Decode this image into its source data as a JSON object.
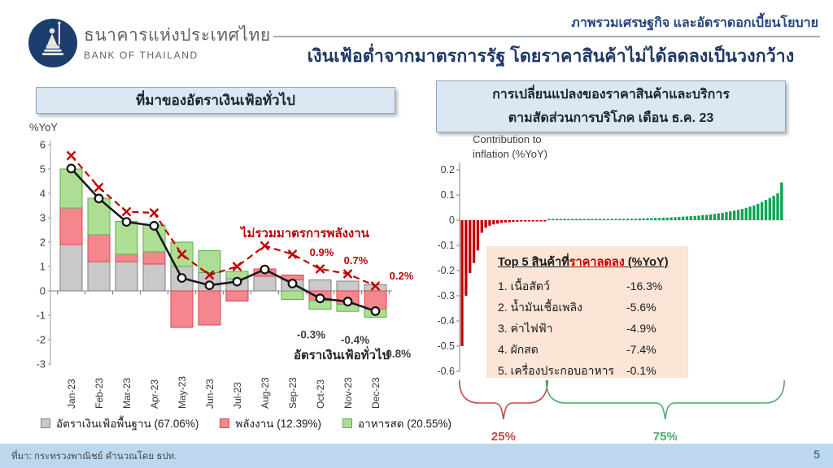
{
  "header": {
    "bank_name_th": "ธนาคารแห่งประเทศไทย",
    "bank_name_en": "BANK OF THAILAND",
    "section_title": "ภาพรวมเศรษฐกิจ และอัตราดอกเบี้ยนโยบาย",
    "slide_title": "เงินเฟ้อต่ำจากมาตรการรัฐ โดยราคาสินค้าไม่ได้ลดลงเป็นวงกว้าง"
  },
  "left_panel": {
    "banner": "ที่มาของอัตราเงินเฟ้อทั่วไป",
    "y_axis_label": "%YoY"
  },
  "right_panel": {
    "banner_line1": "การเปลี่ยนแปลงของราคาสินค้าและบริการ",
    "banner_line2": "ตามสัดส่วนการบริโภค เดือน ธ.ค. 23",
    "top5": {
      "heading_prefix": "Top 5 สินค้าที่",
      "heading_highlight": "ราคาลดลง",
      "heading_suffix": " (%YoY)",
      "items": [
        {
          "label": "1. เนื้อสัตว์",
          "value": "-16.3%"
        },
        {
          "label": "2. น้ำมันเชื้อเพลิง",
          "value": "-5.6%"
        },
        {
          "label": "3. ค่าไฟฟ้า",
          "value": "-4.9%"
        },
        {
          "label": "4. ผักสด",
          "value": "-7.4%"
        },
        {
          "label": "5. เครื่องประกอบอาหาร",
          "value": "-0.1%"
        }
      ]
    }
  },
  "footer": {
    "source": "ที่มา: กระทรวงพาณิชย์ คำนวณโดย ธปท.",
    "page_number": "5"
  },
  "colors": {
    "title_navy": "#1F3864",
    "banner_bg": "#DBE8F4",
    "footer_bg": "#BDD7EE",
    "logo_navy": "#1C3E6E",
    "top5_bg": "#FBE5D6"
  },
  "chart_data": [
    {
      "type": "bar",
      "subtype": "stacked-bars-with-lines",
      "title": "ที่มาของอัตราเงินเฟ้อทั่วไป",
      "ylabel": "%YoY",
      "ylim": [
        -3,
        6
      ],
      "yticks": [
        6,
        5,
        4,
        3,
        2,
        1,
        0,
        -1,
        -2,
        -3
      ],
      "grid": false,
      "legend_position": "bottom",
      "categories": [
        "Jan-23",
        "Feb-23",
        "Mar-23",
        "Apr-23",
        "May-23",
        "Jun-23",
        "Jul-23",
        "Aug-23",
        "Sep-23",
        "Oct-23",
        "Nov-23",
        "Dec-23"
      ],
      "series": [
        {
          "name": "อัตราเงินเฟ้อพื้นฐาน (67.06%)",
          "type": "bar",
          "fill": "#C9C9C9",
          "border": "#7F7F7F",
          "values": [
            1.9,
            1.2,
            1.2,
            1.1,
            1.0,
            0.75,
            0.5,
            0.6,
            0.45,
            0.45,
            0.4,
            0.25
          ]
        },
        {
          "name": "พลังงาน (12.39%)",
          "type": "bar",
          "fill": "#F4878E",
          "border": "#E0424D",
          "values": [
            1.5,
            1.1,
            0.3,
            0.5,
            -1.5,
            -1.4,
            -0.42,
            0.3,
            0.2,
            -0.4,
            -0.55,
            -0.75
          ]
        },
        {
          "name": "อาหารสด (20.55%)",
          "type": "bar",
          "fill": "#AEDD94",
          "border": "#56B14B",
          "values": [
            1.6,
            1.5,
            1.35,
            1.1,
            1.0,
            0.9,
            0.3,
            0,
            -0.35,
            -0.35,
            -0.29,
            -0.33
          ]
        },
        {
          "name": "อัตราเงินเฟ้อทั่วไป",
          "type": "line",
          "color": "#1A1A1A",
          "values": [
            5.02,
            3.79,
            2.83,
            2.67,
            0.53,
            0.23,
            0.38,
            0.88,
            0.3,
            -0.31,
            -0.44,
            -0.83
          ]
        },
        {
          "name": "ไม่รวมมาตรการพลังงาน",
          "type": "dashed-line",
          "color": "#C00000",
          "values": [
            5.55,
            4.25,
            3.25,
            3.2,
            1.5,
            0.65,
            1.0,
            1.85,
            1.5,
            0.9,
            0.7,
            0.2
          ]
        }
      ],
      "annotations": {
        "dashed_label": "ไม่รวมมาตรการพลังงาน",
        "dashed_point_labels": [
          {
            "index": 9,
            "text": "0.9%"
          },
          {
            "index": 10,
            "text": "0.7%"
          },
          {
            "index": 11,
            "text": "0.2%"
          }
        ],
        "line_point_labels": [
          {
            "index": 9,
            "text": "-0.3%"
          },
          {
            "index": 10,
            "text": "-0.4%"
          },
          {
            "index": 11,
            "text": "-0.8%"
          }
        ],
        "line_label": "อัตราเงินเฟ้อทั่วไป"
      }
    },
    {
      "type": "bar",
      "subtype": "sorted-contribution-bars",
      "title_line1": "Contribution to",
      "title_line2": "inflation (%YoY)",
      "ylim": [
        -0.6,
        0.2
      ],
      "yticks": [
        0.2,
        0.1,
        0,
        -0.1,
        -0.2,
        -0.3,
        -0.4,
        -0.5,
        -0.6
      ],
      "negative_color": "#C00000",
      "positive_color": "#00A551",
      "values": [
        -0.5,
        -0.3,
        -0.21,
        -0.17,
        -0.12,
        -0.05,
        -0.03,
        -0.022,
        -0.017,
        -0.014,
        -0.011,
        -0.009,
        -0.008,
        -0.007,
        -0.006,
        -0.005,
        -0.005,
        -0.004,
        -0.004,
        -0.003,
        -0.003,
        -0.002,
        0.002,
        0.002,
        0.002,
        0.002,
        0.002,
        0.002,
        0.002,
        0.003,
        0.003,
        0.003,
        0.003,
        0.003,
        0.003,
        0.004,
        0.004,
        0.004,
        0.004,
        0.005,
        0.005,
        0.005,
        0.006,
        0.006,
        0.006,
        0.007,
        0.007,
        0.008,
        0.008,
        0.009,
        0.009,
        0.01,
        0.01,
        0.011,
        0.012,
        0.013,
        0.014,
        0.015,
        0.016,
        0.017,
        0.018,
        0.02,
        0.021,
        0.023,
        0.025,
        0.027,
        0.029,
        0.032,
        0.035,
        0.038,
        0.041,
        0.045,
        0.049,
        0.054,
        0.059,
        0.065,
        0.072,
        0.08,
        0.088,
        0.097,
        0.107,
        0.15
      ],
      "group_braces": [
        {
          "share_label": "25%",
          "color": "#BE4B48",
          "from": 0,
          "to": 21
        },
        {
          "share_label": "75%",
          "color": "#52A96F",
          "from": 22,
          "to": 81
        }
      ]
    }
  ]
}
